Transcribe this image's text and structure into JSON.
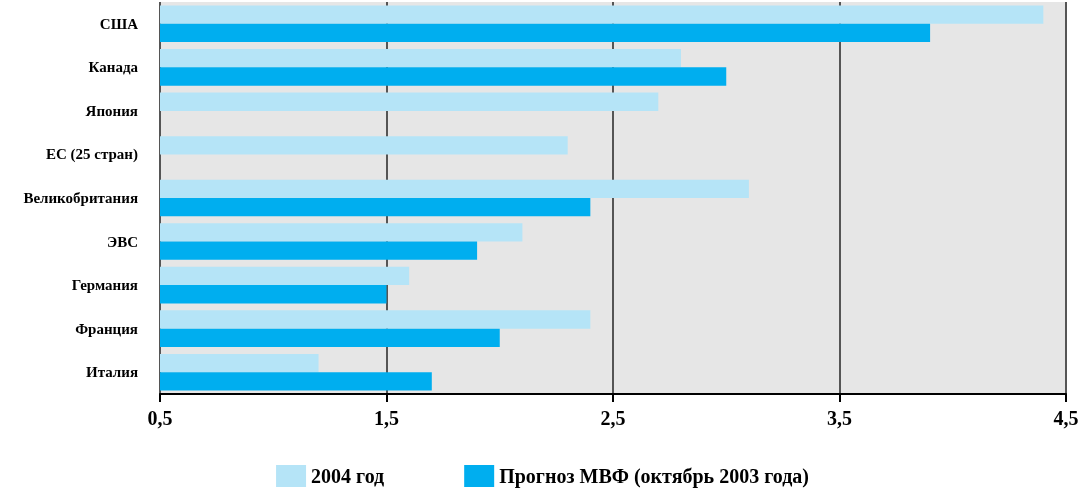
{
  "chart_data": {
    "type": "bar",
    "orientation": "horizontal",
    "categories": [
      "США",
      "Канада",
      "Япония",
      "ЕС (25 стран)",
      "Великобритания",
      "ЭВС",
      "Германия",
      "Франция",
      "Италия"
    ],
    "series": [
      {
        "name": "2004 год",
        "color": "#b5e4f7",
        "values": [
          4.4,
          2.8,
          2.7,
          2.3,
          3.1,
          2.1,
          1.6,
          2.4,
          1.2
        ]
      },
      {
        "name": "Прогноз МВФ (октябрь 2003 года)",
        "color": "#00aeef",
        "values": [
          3.9,
          3.0,
          null,
          null,
          2.4,
          1.9,
          1.5,
          2.0,
          1.7
        ]
      }
    ],
    "xlim": [
      0.5,
      4.5
    ],
    "xticks": [
      {
        "value": 0.5,
        "label": "0,5"
      },
      {
        "value": 1.5,
        "label": "1,5"
      },
      {
        "value": 2.5,
        "label": "2,5"
      },
      {
        "value": 3.5,
        "label": "3,5"
      },
      {
        "value": 4.5,
        "label": "4,5"
      }
    ],
    "grid": "x",
    "legend": "bottom"
  }
}
